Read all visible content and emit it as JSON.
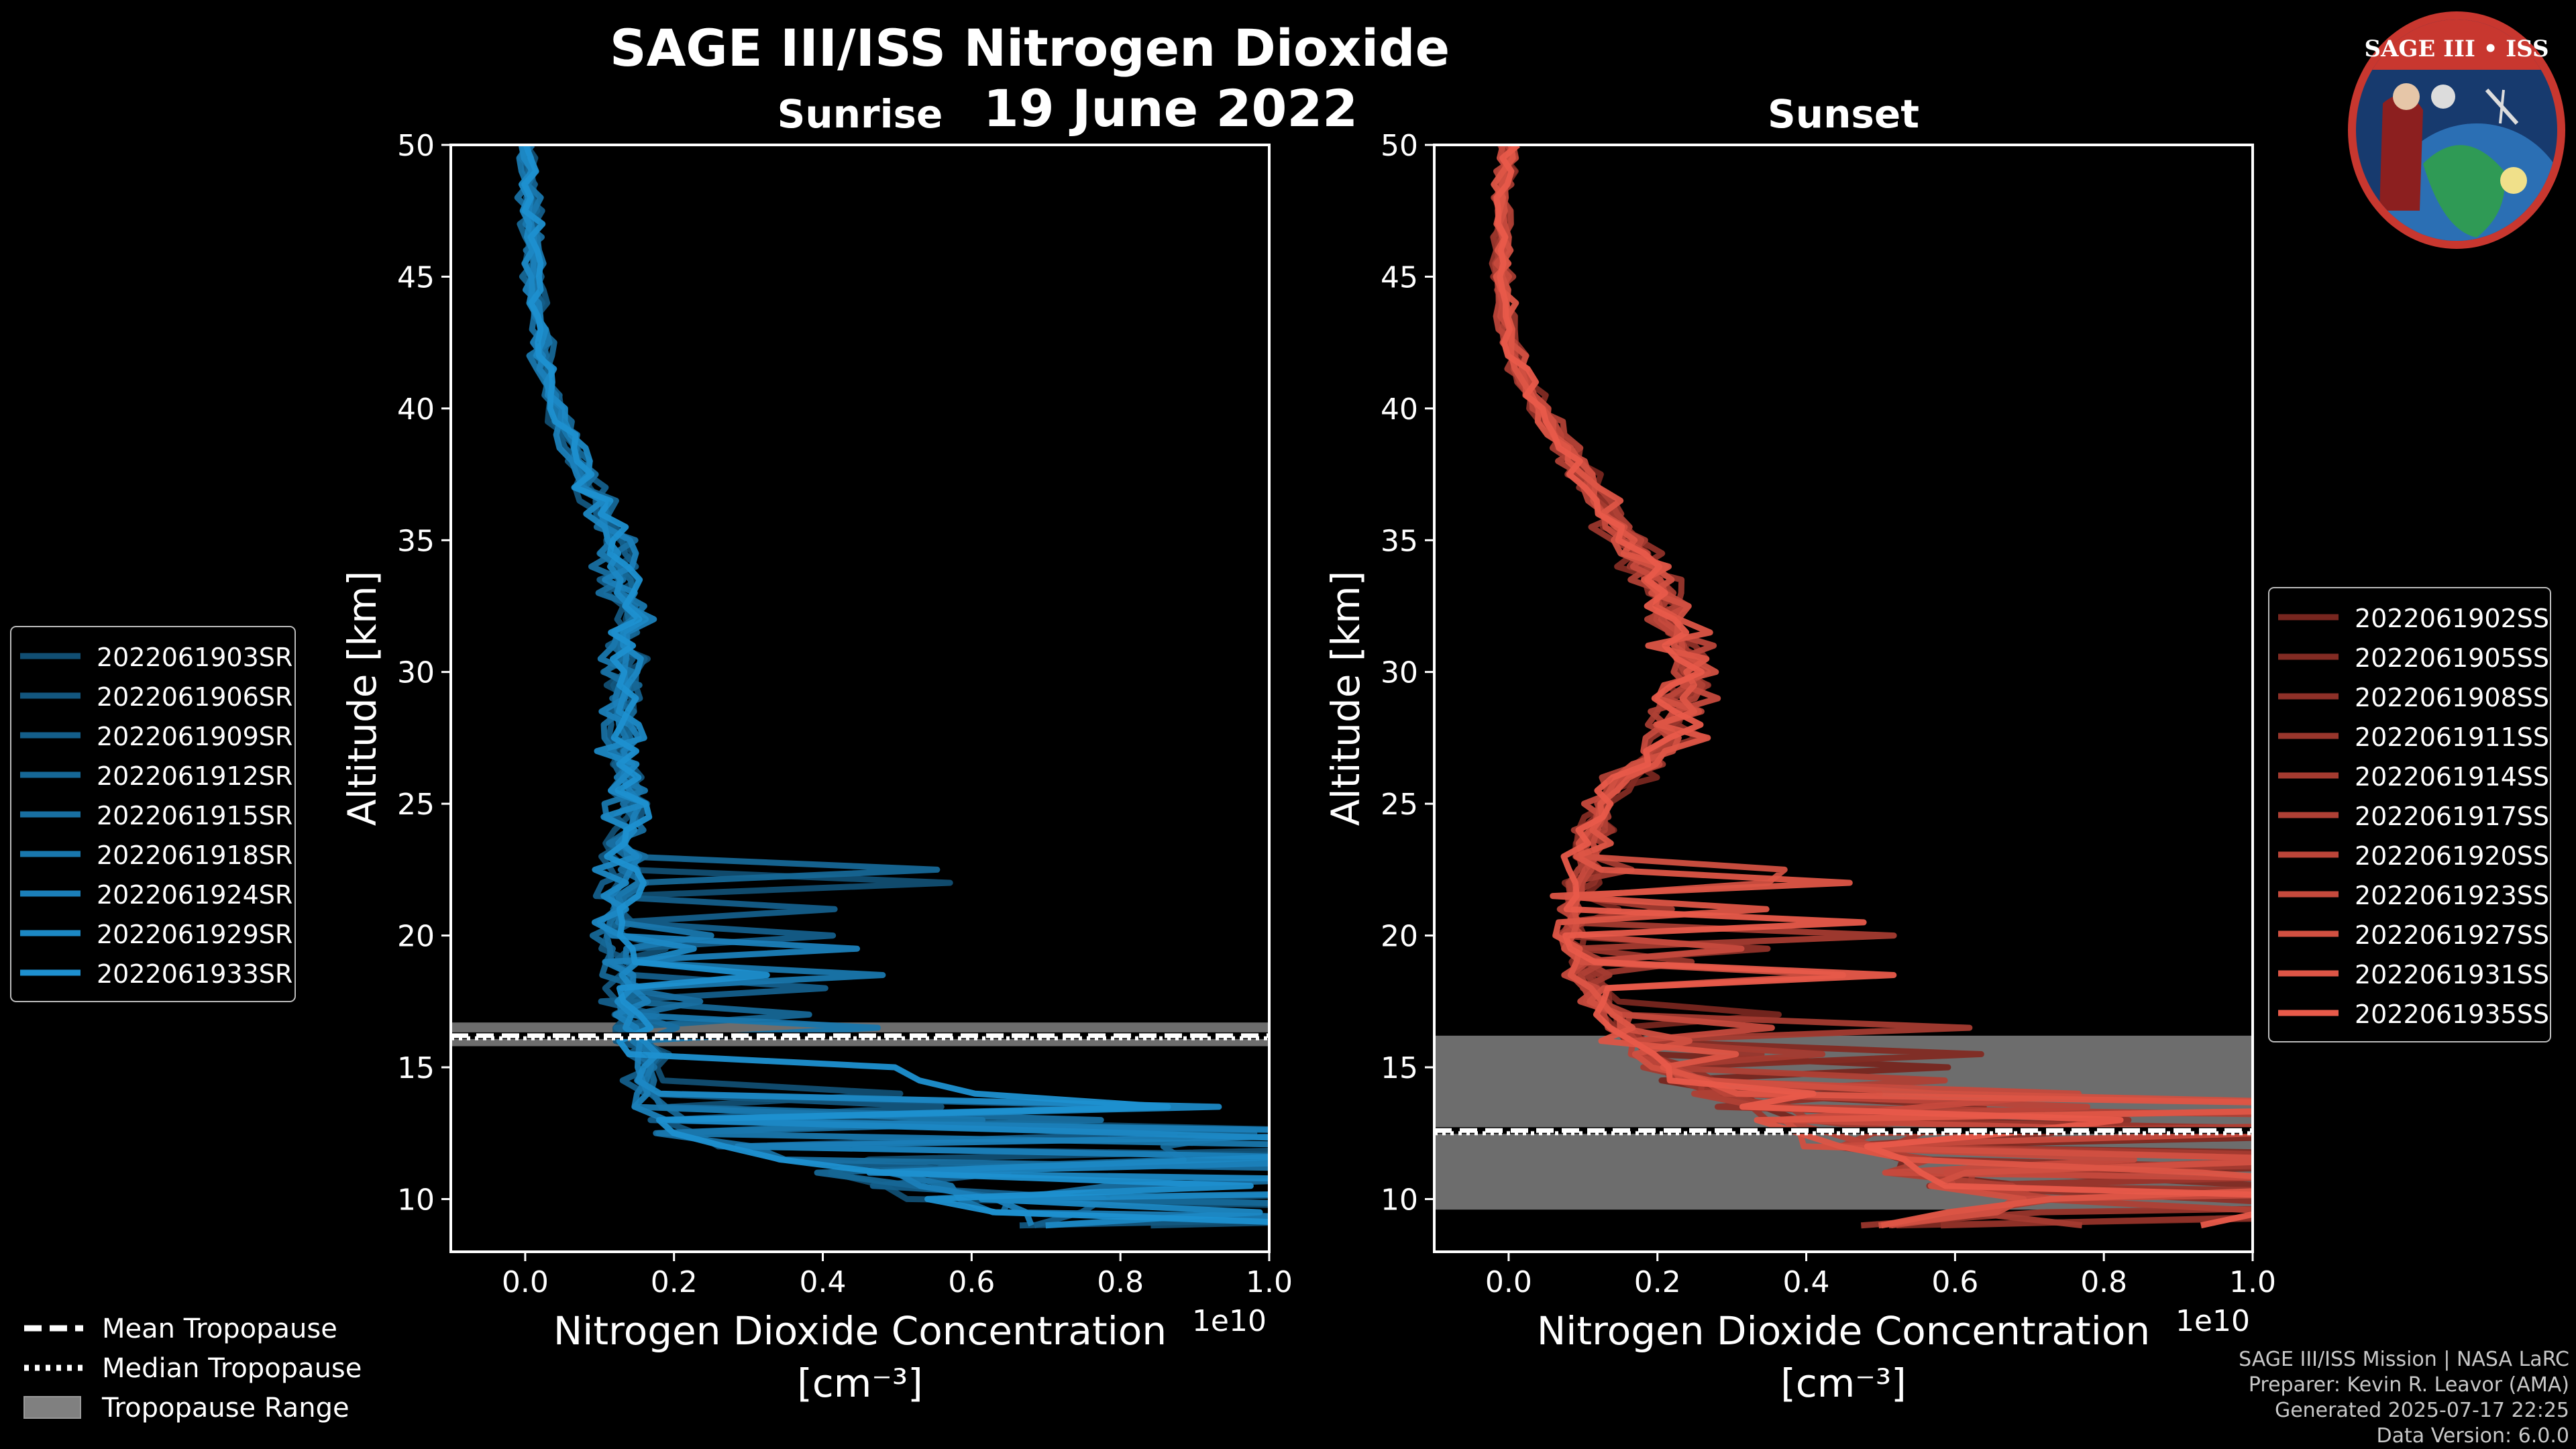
{
  "title_line1": "SAGE III/ISS Nitrogen Dioxide",
  "title_line2": "19 June 2022",
  "logo_text": "SAGE III • ISS",
  "colors": {
    "sunrise": "#1e90d0",
    "sunset": "#e85a4a",
    "tropopause_range": "#808080",
    "background": "#000000",
    "foreground": "#ffffff"
  },
  "chart_data": [
    {
      "type": "line",
      "panel_title": "Sunrise",
      "xlabel": "Nitrogen Dioxide Concentration",
      "xlabel_unit": "[cm⁻³]",
      "ylabel": "Altitude [km]",
      "x_offset_label": "1e10",
      "xlim": [
        -0.1,
        1.0
      ],
      "ylim": [
        8,
        50
      ],
      "x_ticks": [
        0.0,
        0.2,
        0.4,
        0.6,
        0.8,
        1.0
      ],
      "x_tick_labels": [
        "0.0",
        "0.2",
        "0.4",
        "0.6",
        "0.8",
        "1.0"
      ],
      "y_ticks": [
        10,
        15,
        20,
        25,
        30,
        35,
        40,
        45,
        50
      ],
      "legend_position": "left",
      "tropopause": {
        "mean": 16.2,
        "median": 16.1,
        "range": [
          15.8,
          16.7
        ]
      },
      "series": [
        {
          "name": "2022061903SR"
        },
        {
          "name": "2022061906SR"
        },
        {
          "name": "2022061909SR"
        },
        {
          "name": "2022061912SR"
        },
        {
          "name": "2022061915SR"
        },
        {
          "name": "2022061918SR"
        },
        {
          "name": "2022061924SR"
        },
        {
          "name": "2022061929SR"
        },
        {
          "name": "2022061933SR"
        }
      ],
      "profile_mean": [
        [
          0.0,
          50
        ],
        [
          0.01,
          47.5
        ],
        [
          0.01,
          45
        ],
        [
          0.02,
          42.5
        ],
        [
          0.04,
          40
        ],
        [
          0.08,
          37.5
        ],
        [
          0.12,
          35
        ],
        [
          0.14,
          32.5
        ],
        [
          0.13,
          30
        ],
        [
          0.13,
          27.5
        ],
        [
          0.14,
          25
        ],
        [
          0.13,
          22.5
        ],
        [
          0.12,
          20
        ],
        [
          0.14,
          17.5
        ],
        [
          0.16,
          15
        ],
        [
          0.2,
          12.5
        ],
        [
          0.6,
          10
        ],
        [
          0.7,
          9
        ]
      ]
    },
    {
      "type": "line",
      "panel_title": "Sunset",
      "xlabel": "Nitrogen Dioxide Concentration",
      "xlabel_unit": "[cm⁻³]",
      "ylabel": "Altitude [km]",
      "x_offset_label": "1e10",
      "xlim": [
        -0.1,
        1.0
      ],
      "ylim": [
        8,
        50
      ],
      "x_ticks": [
        0.0,
        0.2,
        0.4,
        0.6,
        0.8,
        1.0
      ],
      "x_tick_labels": [
        "0.0",
        "0.2",
        "0.4",
        "0.6",
        "0.8",
        "1.0"
      ],
      "y_ticks": [
        10,
        15,
        20,
        25,
        30,
        35,
        40,
        45,
        50
      ],
      "legend_position": "right",
      "tropopause": {
        "mean": 12.6,
        "median": 12.5,
        "range": [
          9.6,
          16.2
        ]
      },
      "series": [
        {
          "name": "2022061902SS"
        },
        {
          "name": "2022061905SS"
        },
        {
          "name": "2022061908SS"
        },
        {
          "name": "2022061911SS"
        },
        {
          "name": "2022061914SS"
        },
        {
          "name": "2022061917SS"
        },
        {
          "name": "2022061920SS"
        },
        {
          "name": "2022061923SS"
        },
        {
          "name": "2022061927SS"
        },
        {
          "name": "2022061931SS"
        },
        {
          "name": "2022061935SS"
        }
      ],
      "profile_mean": [
        [
          0.0,
          50
        ],
        [
          -0.01,
          47.5
        ],
        [
          -0.01,
          45
        ],
        [
          0.0,
          42.5
        ],
        [
          0.04,
          40
        ],
        [
          0.1,
          37.5
        ],
        [
          0.16,
          35
        ],
        [
          0.22,
          32.5
        ],
        [
          0.25,
          30
        ],
        [
          0.22,
          27.5
        ],
        [
          0.12,
          25
        ],
        [
          0.1,
          22.5
        ],
        [
          0.08,
          20
        ],
        [
          0.12,
          17.5
        ],
        [
          0.2,
          15
        ],
        [
          0.4,
          12.5
        ],
        [
          0.7,
          10
        ],
        [
          0.5,
          9
        ]
      ]
    }
  ],
  "global_legend": [
    {
      "label": "Mean Tropopause",
      "style": "dashed"
    },
    {
      "label": "Median Tropopause",
      "style": "dotted"
    },
    {
      "label": "Tropopause Range",
      "style": "patch"
    }
  ],
  "footer": [
    "SAGE III/ISS Mission | NASA LaRC",
    "Preparer: Kevin R. Leavor (AMA)",
    "Generated 2025-07-17 22:25",
    "Data Version: 6.0.0"
  ]
}
